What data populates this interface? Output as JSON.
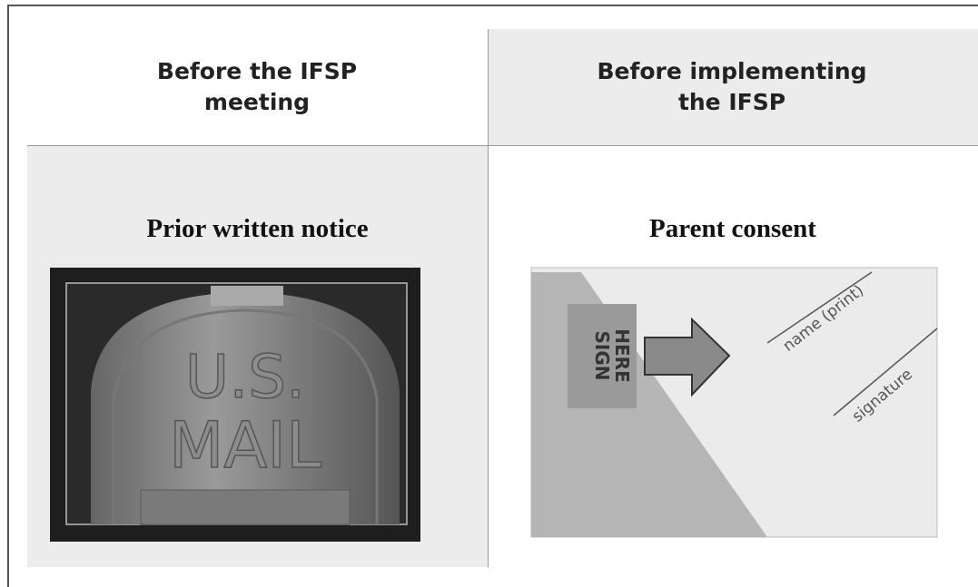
{
  "table": {
    "headers": [
      "Before the IFSP meeting",
      "Before implementing the IFSP"
    ],
    "cells": [
      "Prior written notice",
      "Parent consent"
    ]
  },
  "images": {
    "mailbox": {
      "text": [
        "U.S.",
        "MAIL"
      ]
    },
    "consent_form": {
      "sign_tab": [
        "SIGN",
        "HERE"
      ],
      "fields": [
        "name (print)",
        "signature"
      ]
    }
  }
}
